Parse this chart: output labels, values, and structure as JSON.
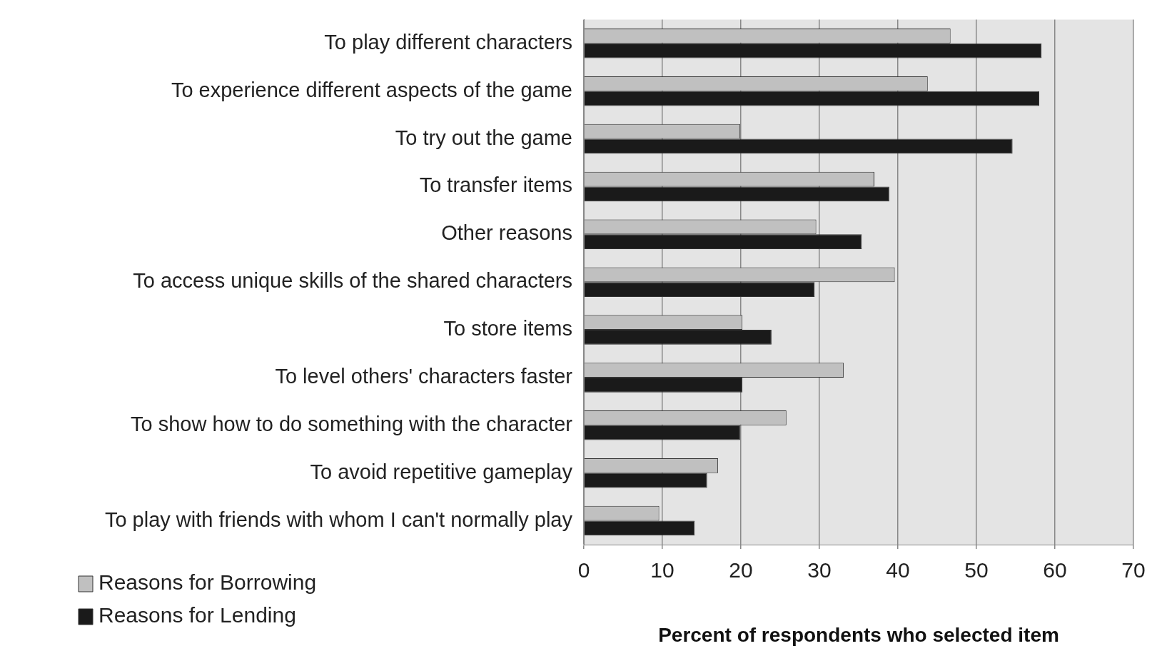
{
  "chart_data": {
    "type": "bar",
    "orientation": "horizontal",
    "xlabel": "Percent of respondents who selected item",
    "categories": [
      "To play different characters",
      "To experience different aspects of the game",
      "To try out the game",
      "To transfer items",
      "Other reasons",
      "To access unique skills of the shared characters",
      "To store items",
      "To level others' characters faster",
      "To show how to do something with the character",
      "To avoid repetitive gameplay",
      "To play with friends with whom I can't normally play"
    ],
    "series": [
      {
        "name": "Reasons for Borrowing",
        "color": "#c0c0c0",
        "values": [
          46.7,
          43.8,
          19.9,
          37.0,
          29.6,
          39.6,
          20.2,
          33.1,
          25.8,
          17.1,
          9.6
        ]
      },
      {
        "name": "Reasons for Lending",
        "color": "#1a1a1a",
        "values": [
          58.3,
          58.0,
          54.6,
          38.9,
          35.4,
          29.4,
          23.9,
          20.2,
          19.9,
          15.7,
          14.1
        ]
      }
    ],
    "xlim": [
      0,
      70
    ],
    "xticks": [
      0,
      10,
      20,
      30,
      40,
      50,
      60,
      70
    ],
    "grid": "x",
    "legend": "bottom left"
  }
}
